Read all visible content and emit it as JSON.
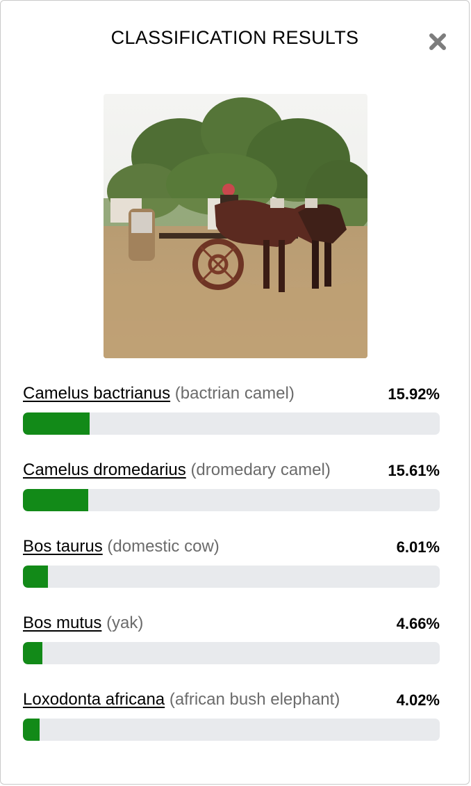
{
  "dialog": {
    "title": "CLASSIFICATION RESULTS",
    "close_icon": "close-icon"
  },
  "colors": {
    "bar_fill": "#128a18",
    "bar_track": "#e8eaed",
    "common_name_text": "#6b6b6b"
  },
  "results": [
    {
      "scientific": "Camelus bactrianus",
      "common": "(bactrian camel)",
      "percent_label": "15.92%",
      "value": 15.92
    },
    {
      "scientific": "Camelus dromedarius",
      "common": "(dromedary camel)",
      "percent_label": "15.61%",
      "value": 15.61
    },
    {
      "scientific": "Bos taurus",
      "common": "(domestic cow)",
      "percent_label": "6.01%",
      "value": 6.01
    },
    {
      "scientific": "Bos mutus",
      "common": "(yak)",
      "percent_label": "4.66%",
      "value": 4.66
    },
    {
      "scientific": "Loxodonta africana",
      "common": "(african bush elephant)",
      "percent_label": "4.02%",
      "value": 4.02
    }
  ]
}
